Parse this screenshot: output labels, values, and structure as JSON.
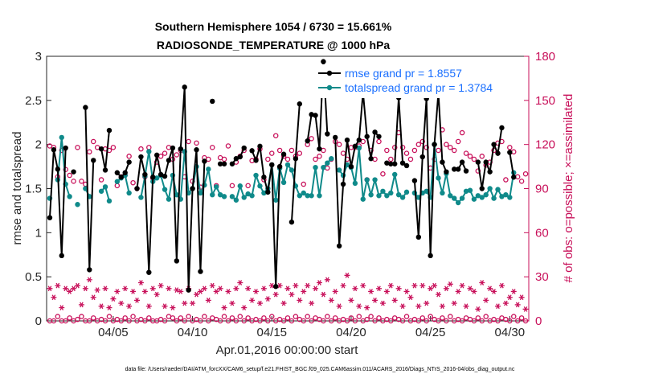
{
  "chart_data": {
    "type": "line",
    "title_line1": "Southern Hemisphere 1054 / 6730 = 15.661%",
    "title_line2": "RADIOSONDE_TEMPERATURE @ 1000 hPa",
    "xlabel": "Apr.01,2016 00:00:00 start",
    "ylabel": "rmse and totalspread",
    "ylabel_right": "# of obs: o=possible; ×=assimilated",
    "xlim": [
      0.8,
      31.2
    ],
    "ylim": [
      0,
      3
    ],
    "ylim_right": [
      0,
      180
    ],
    "yticks": [
      0,
      0.5,
      1,
      1.5,
      2,
      2.5,
      3
    ],
    "yticks_labels": [
      "0",
      "0.5",
      "1",
      "1.5",
      "2",
      "2.5",
      "3"
    ],
    "yticks_right": [
      0,
      30,
      60,
      90,
      120,
      150,
      180
    ],
    "yticks_right_labels": [
      "0",
      "30",
      "60",
      "90",
      "120",
      "150",
      "180"
    ],
    "xticks": [
      5,
      10,
      15,
      20,
      25,
      30
    ],
    "xtick_labels": [
      "04/05",
      "04/10",
      "04/15",
      "04/20",
      "04/25",
      "04/30"
    ],
    "legend": [
      {
        "label": "rmse grand pr = 1.8557",
        "color": "#000000"
      },
      {
        "label": "totalspread grand pr = 1.3784",
        "color": "#0f8a8a"
      }
    ],
    "footnote": "data file: /Users/raeder/DAI/ATM_forcXX/CAM6_setup/f.e21.FHIST_BGC.f09_025.CAM6assim.011/ACARS_2016/Diags_NTrS_2016-04/obs_diag_output.nc",
    "series": [
      {
        "name": "rmse",
        "color": "#000000",
        "x": [
          1.0,
          1.25,
          1.5,
          1.75,
          2.0,
          2.25,
          2.5,
          2.75,
          3.0,
          3.25,
          3.5,
          3.75,
          4.0,
          4.25,
          4.5,
          4.75,
          5.0,
          5.25,
          5.5,
          5.75,
          6.0,
          6.25,
          6.5,
          6.75,
          7.0,
          7.25,
          7.5,
          7.75,
          8.0,
          8.25,
          8.5,
          8.75,
          9.0,
          9.25,
          9.5,
          9.75,
          10.0,
          10.25,
          10.5,
          10.75,
          11.0,
          11.25,
          11.5,
          11.75,
          12.0,
          12.25,
          12.5,
          12.75,
          13.0,
          13.25,
          13.5,
          13.75,
          14.0,
          14.25,
          14.5,
          14.75,
          15.0,
          15.25,
          15.5,
          15.75,
          16.0,
          16.25,
          16.5,
          16.75,
          17.0,
          17.25,
          17.5,
          17.75,
          18.0,
          18.25,
          18.5,
          18.75,
          19.0,
          19.25,
          19.5,
          19.75,
          20.0,
          20.25,
          20.5,
          20.75,
          21.0,
          21.25,
          21.5,
          21.75,
          22.0,
          22.25,
          22.5,
          22.75,
          23.0,
          23.25,
          23.5,
          23.75,
          24.0,
          24.25,
          24.5,
          24.75,
          25.0,
          25.25,
          25.5,
          25.75,
          26.0,
          26.25,
          26.5,
          26.75,
          27.0,
          27.25,
          27.5,
          27.75,
          28.0,
          28.25,
          28.5,
          28.75,
          29.0,
          29.25,
          29.5,
          29.75,
          30.0,
          30.25,
          30.5,
          30.75,
          31.0
        ],
        "y": [
          1.17,
          1.94,
          1.72,
          0.74,
          1.96,
          null,
          1.69,
          null,
          null,
          2.42,
          0.58,
          1.82,
          null,
          1.95,
          1.71,
          2.16,
          null,
          1.68,
          1.63,
          1.68,
          1.8,
          null,
          1.5,
          1.86,
          1.66,
          0.55,
          1.63,
          1.88,
          1.66,
          1.64,
          1.82,
          1.96,
          0.68,
          1.95,
          2.65,
          0.35,
          1.5,
          1.94,
          0.56,
          1.81,
          null,
          2.49,
          null,
          1.78,
          1.78,
          null,
          1.78,
          1.84,
          1.86,
          1.96,
          null,
          1.93,
          1.82,
          1.98,
          1.63,
          1.46,
          1.77,
          0.39,
          1.75,
          1.89,
          null,
          1.12,
          1.84,
          2.46,
          null,
          2.04,
          2.34,
          2.33,
          1.95,
          2.94,
          2.12,
          null,
          2.08,
          0.85,
          1.55,
          2.05,
          1.75,
          1.98,
          2.05,
          2.59,
          2.09,
          1.84,
          2.14,
          2.09,
          null,
          1.79,
          1.78,
          1.78,
          2.53,
          1.79,
          1.76,
          null,
          1.59,
          0.95,
          1.86,
          2.52,
          0.74,
          2.0,
          2.59,
          1.8,
          1.69,
          null,
          1.72,
          1.72,
          1.8,
          1.7,
          null,
          null,
          1.8,
          1.5,
          1.8,
          1.69,
          2.0,
          1.9,
          2.19,
          null,
          1.91,
          1.63,
          null,
          null,
          null
        ]
      },
      {
        "name": "totalspread",
        "color": "#0f8a8a",
        "x": [
          1.0,
          1.25,
          1.5,
          1.75,
          2.0,
          2.25,
          2.5,
          2.75,
          3.0,
          3.25,
          3.5,
          3.75,
          4.0,
          4.25,
          4.5,
          4.75,
          5.0,
          5.25,
          5.5,
          5.75,
          6.0,
          6.25,
          6.5,
          6.75,
          7.0,
          7.25,
          7.5,
          7.75,
          8.0,
          8.25,
          8.5,
          8.75,
          9.0,
          9.25,
          9.5,
          9.75,
          10.0,
          10.25,
          10.5,
          10.75,
          11.0,
          11.25,
          11.5,
          11.75,
          12.0,
          12.25,
          12.5,
          12.75,
          13.0,
          13.25,
          13.5,
          13.75,
          14.0,
          14.25,
          14.5,
          14.75,
          15.0,
          15.25,
          15.5,
          15.75,
          16.0,
          16.25,
          16.5,
          16.75,
          17.0,
          17.25,
          17.5,
          17.75,
          18.0,
          18.25,
          18.5,
          18.75,
          19.0,
          19.25,
          19.5,
          19.75,
          20.0,
          20.25,
          20.5,
          20.75,
          21.0,
          21.25,
          21.5,
          21.75,
          22.0,
          22.25,
          22.5,
          22.75,
          23.0,
          23.25,
          23.5,
          23.75,
          24.0,
          24.25,
          24.5,
          24.75,
          25.0,
          25.25,
          25.5,
          25.75,
          26.0,
          26.25,
          26.5,
          26.75,
          27.0,
          27.25,
          27.5,
          27.75,
          28.0,
          28.25,
          28.5,
          28.75,
          29.0,
          29.25,
          29.5,
          29.75,
          30.0,
          30.25,
          30.5,
          30.75,
          31.0
        ],
        "y": [
          1.39,
          null,
          1.6,
          2.08,
          1.55,
          1.41,
          null,
          1.32,
          null,
          1.5,
          1.41,
          null,
          null,
          1.47,
          1.52,
          1.36,
          null,
          1.58,
          1.62,
          1.65,
          1.45,
          null,
          null,
          1.4,
          1.64,
          1.92,
          1.58,
          1.62,
          1.65,
          1.49,
          1.38,
          1.65,
          1.43,
          1.38,
          1.92,
          1.45,
          1.5,
          1.75,
          1.45,
          1.54,
          1.72,
          1.43,
          1.52,
          1.43,
          1.41,
          null,
          1.41,
          1.37,
          1.53,
          1.4,
          1.44,
          1.42,
          1.65,
          1.53,
          1.45,
          1.5,
          1.77,
          1.37,
          1.73,
          1.57,
          1.77,
          1.71,
          1.53,
          1.42,
          1.45,
          1.42,
          1.42,
          1.74,
          1.42,
          1.74,
          1.79,
          1.84,
          null,
          1.71,
          1.65,
          1.77,
          1.74,
          1.56,
          1.96,
          1.38,
          1.6,
          1.43,
          1.6,
          1.42,
          1.47,
          1.42,
          1.45,
          1.66,
          1.43,
          1.4,
          1.46,
          null,
          1.45,
          1.4,
          1.45,
          1.47,
          1.4,
          2.0,
          1.62,
          1.45,
          1.67,
          1.42,
          1.39,
          1.34,
          1.39,
          1.47,
          1.48,
          1.38,
          1.42,
          1.4,
          1.43,
          1.5,
          1.39,
          1.49,
          1.41,
          1.43,
          1.4,
          1.68,
          null,
          null,
          null
        ]
      },
      {
        "name": "possible",
        "marker": "o",
        "axis": "right",
        "color": "#c8105a",
        "x": [
          1.0,
          1.25,
          1.5,
          1.75,
          2.0,
          2.25,
          2.5,
          2.75,
          3.0,
          3.25,
          3.5,
          3.75,
          4.0,
          4.25,
          4.5,
          4.75,
          5.0,
          5.25,
          5.5,
          5.75,
          6.0,
          6.25,
          6.5,
          6.75,
          7.0,
          7.25,
          7.5,
          7.75,
          8.0,
          8.25,
          8.5,
          8.75,
          9.0,
          9.25,
          9.5,
          9.75,
          10.0,
          10.25,
          10.5,
          10.75,
          11.0,
          11.25,
          11.5,
          11.75,
          12.0,
          12.25,
          12.5,
          12.75,
          13.0,
          13.25,
          13.5,
          13.75,
          14.0,
          14.25,
          14.5,
          14.75,
          15.0,
          15.25,
          15.5,
          15.75,
          16.0,
          16.25,
          16.5,
          16.75,
          17.0,
          17.25,
          17.5,
          17.75,
          18.0,
          18.25,
          18.5,
          18.75,
          19.0,
          19.25,
          19.5,
          19.75,
          20.0,
          20.25,
          20.5,
          20.75,
          21.0,
          21.25,
          21.5,
          21.75,
          22.0,
          22.25,
          22.5,
          22.75,
          23.0,
          23.25,
          23.5,
          23.75,
          24.0,
          24.25,
          24.5,
          24.75,
          25.0,
          25.25,
          25.5,
          25.75,
          26.0,
          26.25,
          26.5,
          26.75,
          27.0,
          27.25,
          27.5,
          27.75,
          28.0,
          28.25,
          28.5,
          28.75,
          29.0,
          29.25,
          29.5,
          29.75,
          30.0,
          30.25,
          30.5,
          30.75,
          31.0
        ],
        "y": [
          119,
          118,
          98,
          116,
          103,
          99,
          95,
          118,
          95,
          93,
          115,
          122,
          118,
          96,
          117,
          116,
          118,
          92,
          98,
          99,
          112,
          94,
          90,
          117,
          98,
          118,
          97,
          108,
          112,
          114,
          118,
          110,
          113,
          116,
          98,
          122,
          95,
          121,
          91,
          111,
          110,
          118,
          92,
          111,
          110,
          119,
          92,
          108,
          112,
          116,
          92,
          109,
          110,
          117,
          96,
          110,
          114,
          126,
          116,
          112,
          110,
          116,
          112,
          114,
          93,
          120,
          124,
          110,
          112,
          116,
          104,
          110,
          122,
          120,
          114,
          110,
          118,
          118,
          119,
          122,
          96,
          116,
          110,
          122,
          100,
          116,
          110,
          118,
          128,
          118,
          114,
          110,
          116,
          120,
          122,
          118,
          104,
          110,
          116,
          130,
          120,
          118,
          116,
          122,
          128,
          114,
          112,
          110,
          102,
          112,
          106,
          108,
          116,
          121,
          122,
          96,
          118,
          115,
          98,
          95,
          100
        ],
        "y_small": [
          0,
          0,
          3,
          0,
          0,
          2,
          0,
          1,
          3,
          0,
          0,
          2,
          0,
          1,
          0,
          3,
          0,
          1,
          0,
          2,
          0,
          3,
          0,
          1,
          0,
          2,
          0,
          0,
          1,
          0,
          3,
          2,
          0,
          2,
          0,
          3,
          0,
          1,
          0,
          3,
          0,
          2,
          1,
          0,
          3,
          0,
          2,
          0,
          3,
          0,
          2,
          0,
          1,
          0,
          2,
          0,
          3,
          0,
          1,
          0,
          2,
          0,
          3,
          1,
          0,
          3,
          0,
          2,
          1,
          0,
          3,
          0,
          2,
          0,
          1,
          0,
          2,
          0,
          3,
          0,
          1,
          3,
          0,
          2,
          0,
          1,
          0,
          2,
          1,
          0,
          3,
          0,
          1,
          0,
          2,
          0,
          3,
          1,
          0,
          2,
          0,
          3,
          0,
          1,
          0,
          2,
          1,
          0,
          2,
          0,
          3,
          0,
          1,
          0,
          2,
          1,
          0,
          3,
          0,
          2,
          0
        ]
      },
      {
        "name": "assimilated",
        "marker": "*",
        "axis": "right",
        "color": "#c8105a",
        "x": [
          1.0,
          1.25,
          1.5,
          1.75,
          2.0,
          2.25,
          2.5,
          2.75,
          3.0,
          3.25,
          3.5,
          3.75,
          4.0,
          4.25,
          4.5,
          4.75,
          5.0,
          5.25,
          5.5,
          5.75,
          6.0,
          6.25,
          6.5,
          6.75,
          7.0,
          7.25,
          7.5,
          7.75,
          8.0,
          8.25,
          8.5,
          8.75,
          9.0,
          9.25,
          9.5,
          9.75,
          10.0,
          10.25,
          10.5,
          10.75,
          11.0,
          11.25,
          11.5,
          11.75,
          12.0,
          12.25,
          12.5,
          12.75,
          13.0,
          13.25,
          13.5,
          13.75,
          14.0,
          14.25,
          14.5,
          14.75,
          15.0,
          15.25,
          15.5,
          15.75,
          16.0,
          16.25,
          16.5,
          16.75,
          17.0,
          17.25,
          17.5,
          17.75,
          18.0,
          18.25,
          18.5,
          18.75,
          19.0,
          19.25,
          19.5,
          19.75,
          20.0,
          20.25,
          20.5,
          20.75,
          21.0,
          21.25,
          21.5,
          21.75,
          22.0,
          22.25,
          22.5,
          22.75,
          23.0,
          23.25,
          23.5,
          23.75,
          24.0,
          24.25,
          24.5,
          24.75,
          25.0,
          25.25,
          25.5,
          25.75,
          26.0,
          26.25,
          26.5,
          26.75,
          27.0,
          27.25,
          27.5,
          27.75,
          28.0,
          28.25,
          28.5,
          28.75,
          29.0,
          29.25,
          29.5,
          29.75,
          30.0,
          30.25,
          30.5,
          30.75,
          31.0
        ],
        "y": [
          22,
          16,
          24,
          9,
          22,
          20,
          22,
          24,
          11,
          22,
          28,
          16,
          21,
          10,
          22,
          9,
          15,
          20,
          12,
          22,
          10,
          20,
          14,
          26,
          20,
          10,
          22,
          18,
          24,
          10,
          22,
          9,
          21,
          20,
          12,
          22,
          12,
          18,
          20,
          22,
          14,
          24,
          20,
          22,
          9,
          20,
          12,
          22,
          26,
          9,
          22,
          14,
          20,
          12,
          22,
          15,
          24,
          18,
          24,
          12,
          22,
          18,
          24,
          14,
          20,
          24,
          12,
          22,
          26,
          18,
          28,
          14,
          20,
          10,
          24,
          31,
          14,
          22,
          10,
          24,
          9,
          20,
          14,
          22,
          12,
          20,
          24,
          14,
          22,
          10,
          20,
          16,
          24,
          10,
          24,
          12,
          22,
          24,
          18,
          10,
          22,
          25,
          12,
          20,
          24,
          10,
          22,
          20,
          8,
          26,
          14,
          22,
          20,
          10,
          24,
          12,
          16,
          20,
          11,
          16,
          8
        ]
      }
    ]
  }
}
